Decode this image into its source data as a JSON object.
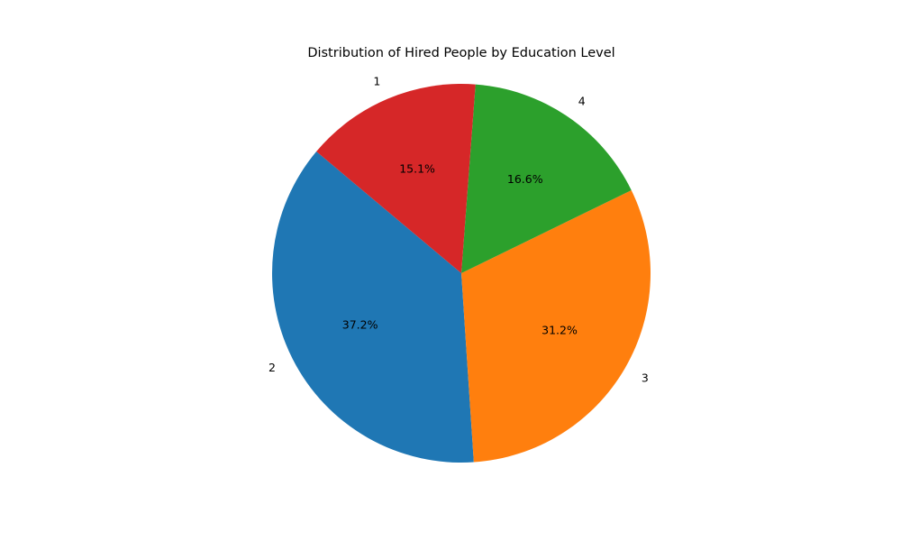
{
  "chart_data": {
    "type": "pie",
    "title": "Distribution of Hired People by Education Level",
    "categories": [
      "2",
      "3",
      "4",
      "1"
    ],
    "values": [
      37.2,
      31.2,
      16.6,
      15.1
    ],
    "value_labels": [
      "37.2%",
      "31.2%",
      "16.6%",
      "15.1%"
    ],
    "colors": [
      "#1f77b4",
      "#ff7f0e",
      "#2ca02c",
      "#d62728"
    ],
    "start_angle_deg": 140,
    "direction": "counterclockwise",
    "legend": "none"
  }
}
